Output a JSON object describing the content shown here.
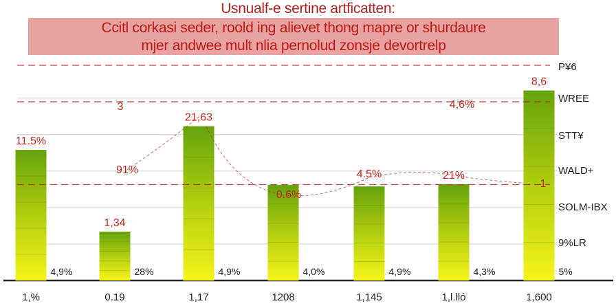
{
  "chart_data": {
    "type": "bar",
    "title": "Usnualf-e sertine artficatten:",
    "subtitle": [
      "Ccitl corkasi seder, roold ing alievet thong mapre or shurdaure",
      "mjer andwee mult nlia pernolud zonsje devortrelp"
    ],
    "categories": [
      "1,%",
      "0.19",
      "1,17",
      "1208",
      "1,145",
      "1,l.lló",
      "1,600"
    ],
    "values": [
      3.58,
      1.34,
      4.23,
      2.62,
      2.58,
      2.64,
      5.21
    ],
    "ylim": [
      0,
      5.9
    ],
    "grid": true,
    "bar_top_labels": [
      "11.5%",
      "1,34",
      "21,63",
      "",
      "",
      "",
      "8,6"
    ],
    "inner_labels": [
      "4,9%",
      "28%",
      "4,9%",
      "4,0%",
      "4,9%",
      "4,3%",
      "5%"
    ],
    "right_axis_labels": [
      "P¥6",
      "WREE",
      "STT¥",
      "WALD+",
      "SOLM-IBX",
      "9%LR"
    ],
    "annotations": [
      "3",
      "4,6%",
      "91%",
      "0.6%",
      "4.5%",
      "21%",
      "1"
    ],
    "reference_lines": [
      5.9,
      4.9,
      2.63
    ],
    "colors": {
      "bar_top": "#6aa510",
      "bar_bottom": "#f4f21c",
      "annotation": "#c4271f",
      "grid": "#cfcfcf"
    }
  }
}
